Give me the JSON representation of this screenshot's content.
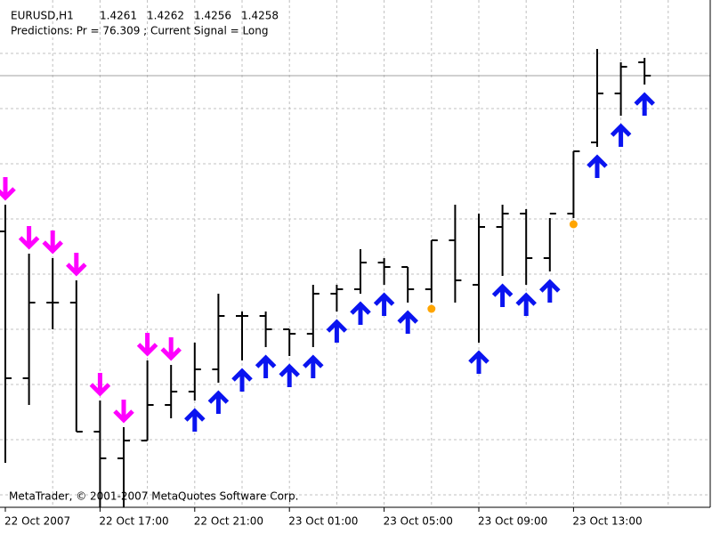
{
  "chart_data": {
    "type": "ohlc",
    "symbol": "EURUSD,H1",
    "subtitle": "Predictions: Pr = 76.309 ; Current Signal =  Long",
    "footer": "MetaTrader, © 2001-2007 MetaQuotes Software Corp.",
    "categories": [
      "22 Oct 2007",
      null,
      null,
      null,
      "22 Oct 17:00",
      null,
      null,
      null,
      "22 Oct 21:00",
      null,
      null,
      null,
      "23 Oct 01:00",
      null,
      null,
      null,
      "23 Oct 05:00",
      null,
      null,
      null,
      "23 Oct 09:00",
      null,
      null,
      null,
      "23 Oct 13:00",
      null,
      null,
      null
    ],
    "open": [
      1.4223,
      1.419,
      1.4207,
      1.4207,
      1.4178,
      1.4172,
      1.4176,
      1.4184,
      1.4187,
      1.4192,
      1.4204,
      1.4204,
      1.4201,
      1.42,
      1.4209,
      1.421,
      1.4216,
      1.4215,
      1.421,
      1.4221,
      1.4211,
      1.4224,
      1.4227,
      1.4217,
      1.4227,
      1.4243,
      1.4254,
      1.4261
    ],
    "high": [
      1.4229,
      1.4218,
      1.4217,
      1.4212,
      1.4185,
      1.4179,
      1.4194,
      1.4193,
      1.4198,
      1.4209,
      1.4205,
      1.4205,
      1.4201,
      1.4211,
      1.4211,
      1.4219,
      1.4217,
      1.4215,
      1.4221,
      1.4229,
      1.4227,
      1.4229,
      1.4228,
      1.4226,
      1.4241,
      1.4264,
      1.4261,
      1.4262
    ],
    "low": [
      1.4171,
      1.4184,
      1.4201,
      1.4178,
      1.4161,
      1.4161,
      1.4176,
      1.4181,
      1.4185,
      1.4189,
      1.4194,
      1.4197,
      1.4195,
      1.4197,
      1.4205,
      1.4209,
      1.4211,
      1.4207,
      1.4207,
      1.4207,
      1.4198,
      1.4213,
      1.4211,
      1.4214,
      1.4226,
      1.4242,
      1.4249,
      1.4256
    ],
    "close": [
      1.419,
      1.4207,
      1.4207,
      1.4178,
      1.4172,
      1.4176,
      1.4184,
      1.4187,
      1.4192,
      1.4204,
      1.4204,
      1.4201,
      1.42,
      1.4209,
      1.421,
      1.4216,
      1.4215,
      1.421,
      1.4221,
      1.4212,
      1.4224,
      1.4227,
      1.4217,
      1.4227,
      1.4241,
      1.4254,
      1.426,
      1.4258
    ],
    "signals": [
      "down",
      "down",
      "down",
      "down",
      "down",
      "down",
      "down",
      "down",
      "up",
      "up",
      "up",
      "up",
      "up",
      "up",
      "up",
      "up",
      "up",
      "up",
      "neutral",
      null,
      "up",
      "up",
      "up",
      "up",
      "neutral",
      "up",
      "up",
      "up"
    ],
    "color": "#000000",
    "up_color": "#0a14f0",
    "down_color": "#ff00ff",
    "neutral_color": "#ffa500",
    "bid_line_color": "#a0a0a0",
    "ylim": [
      1.4161,
      1.4275
    ],
    "grid": true
  }
}
